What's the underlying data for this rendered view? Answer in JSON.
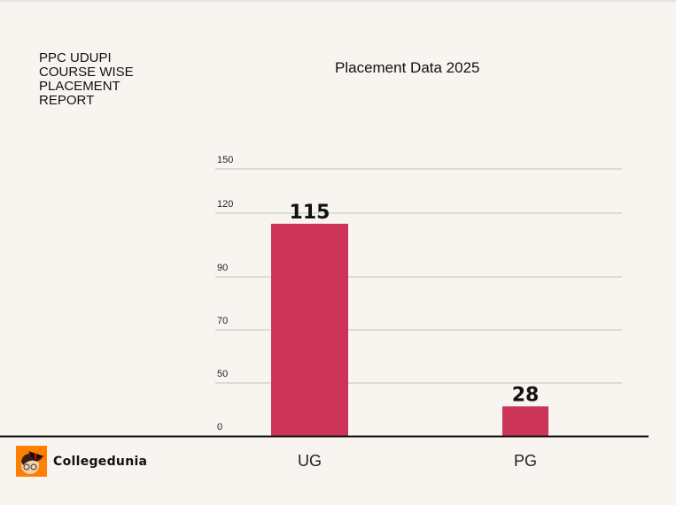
{
  "report_title": "PPC UDUPI COURSE WISE PLACEMENT REPORT",
  "brand": "Collegedunia",
  "chart_data": {
    "type": "bar",
    "title": "Placement Data 2025",
    "categories": [
      "UG",
      "PG"
    ],
    "values": [
      115,
      28
    ],
    "y_ticks": [
      0,
      50,
      70,
      90,
      120,
      150
    ],
    "ylim": [
      0,
      150
    ],
    "grid": true,
    "bar_color": "#cc3558",
    "xlabel": "",
    "ylabel": ""
  }
}
